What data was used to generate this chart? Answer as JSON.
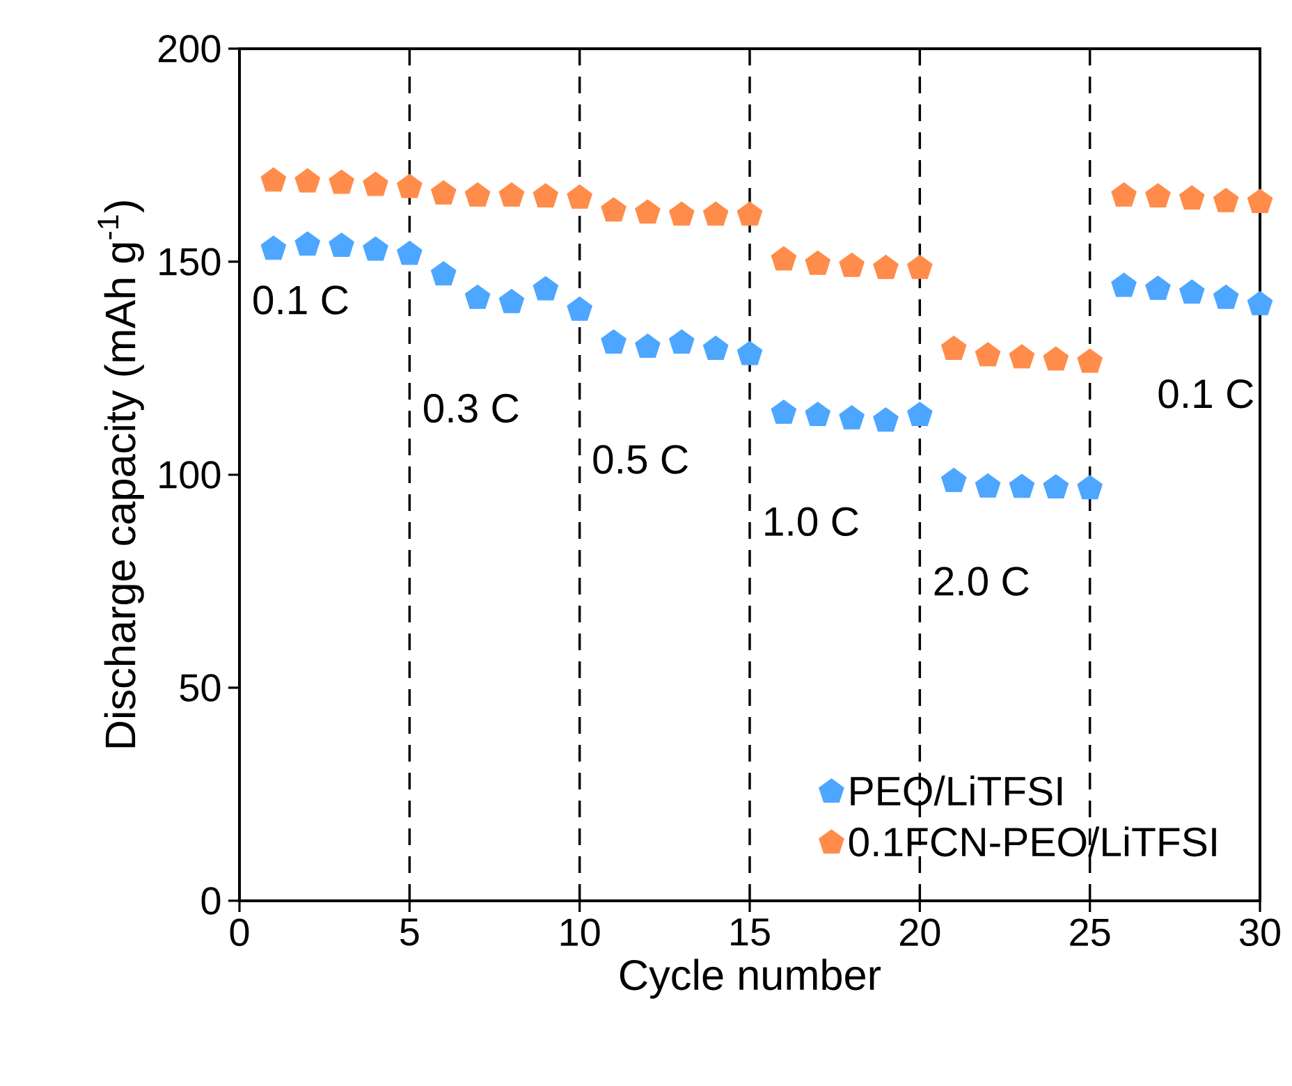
{
  "chart_data": {
    "type": "scatter",
    "xlabel": "Cycle number",
    "ylabel": "Discharge capacity (mAh g$^{-1}$)",
    "x": [
      1,
      2,
      3,
      4,
      5,
      6,
      7,
      8,
      9,
      10,
      11,
      12,
      13,
      14,
      15,
      16,
      17,
      18,
      19,
      20,
      21,
      22,
      23,
      24,
      25,
      26,
      27,
      28,
      29,
      30
    ],
    "series": [
      {
        "name": "PEO/LiTFSI",
        "color": "#4da6ff",
        "values": [
          153,
          154,
          153.7,
          152.8,
          151.8,
          147,
          141.5,
          140.5,
          143.5,
          138.7,
          131,
          130,
          131,
          129.5,
          128.3,
          114.5,
          114,
          113.2,
          112.7,
          114,
          98.5,
          97.2,
          97.1,
          97,
          96.8,
          144.3,
          143.6,
          142.7,
          141.5,
          140
        ]
      },
      {
        "name": "0.1FCN-PEO/LiTFSI",
        "color": "#ff8c4a",
        "values": [
          169,
          168.8,
          168.5,
          168,
          167.5,
          166,
          165.5,
          165.5,
          165.3,
          165,
          162,
          161.5,
          161,
          161,
          161,
          150.5,
          149.5,
          149,
          148.5,
          148.5,
          129.5,
          128,
          127.5,
          127,
          126.5,
          165.5,
          165.3,
          164.8,
          164.2,
          164
        ]
      }
    ],
    "xlim": [
      0,
      30
    ],
    "xticks": [
      0,
      5,
      10,
      15,
      20,
      25,
      30
    ],
    "ylim": [
      0,
      200
    ],
    "yticks": [
      0,
      50,
      100,
      150,
      200
    ],
    "ref_lines": [
      {
        "axis": "x",
        "value": 5,
        "color": "#000000",
        "line_style": "dashed"
      },
      {
        "axis": "x",
        "value": 10,
        "color": "#000000",
        "line_style": "dashed"
      },
      {
        "axis": "x",
        "value": 15,
        "color": "#000000",
        "line_style": "dashed"
      },
      {
        "axis": "x",
        "value": 20,
        "color": "#000000",
        "line_style": "dashed"
      },
      {
        "axis": "x",
        "value": 25,
        "color": "#000000",
        "line_style": "dashed"
      }
    ],
    "annotations": [
      "0.1 C",
      "0.3 C",
      "0.5 C",
      "1.0 C",
      "2.0 C",
      "0.1 C"
    ],
    "legend": "bottom right"
  }
}
